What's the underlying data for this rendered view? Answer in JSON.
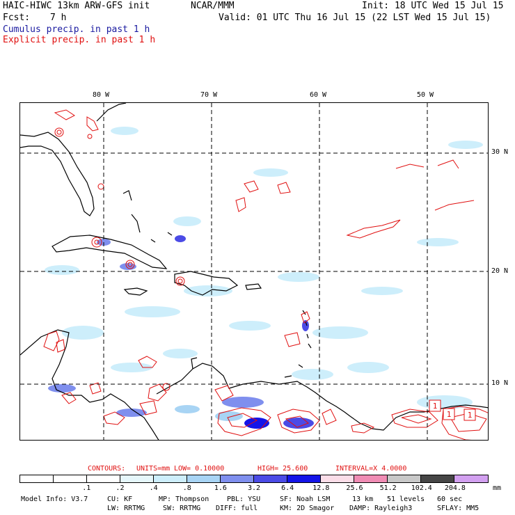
{
  "header": {
    "model_title": "HAIC-HIWC 13km ARW-GFS init",
    "center": "NCAR/MMM",
    "init": "Init: 18 UTC Wed 15 Jul 15",
    "fcst_label": "Fcst:",
    "fcst_value": "7 h",
    "valid": "Valid: 01 UTC Thu 16 Jul 15 (22 LST Wed 15 Jul 15)",
    "line1": "Cumulus precip. in past 1 h",
    "line1_color": "#1a1aa0",
    "line2": "Explicit precip. in past 1 h",
    "line2_color": "#e01010"
  },
  "map": {
    "lon_labels": [
      "80 W",
      "70 W",
      "60 W",
      "50 W"
    ],
    "lat_labels": [
      "30 N",
      "20 N",
      "10 N"
    ],
    "box_labels": [
      "1",
      "1",
      "1"
    ]
  },
  "contours": {
    "contours_label": "CONTOURS:",
    "units": "UNITS=mm",
    "low": "LOW= 0.10000",
    "high": "HIGH= 25.600",
    "interval": "INTERVAL=X 4.0000",
    "color": "#e01010"
  },
  "colorbar": {
    "units": "mm",
    "levels": [
      ".1",
      ".2",
      ".4",
      ".8",
      "1.6",
      "3.2",
      "6.4",
      "12.8",
      "25.6",
      "51.2",
      "102.4",
      "204.8"
    ],
    "colors": [
      "#ffffff",
      "#ffffff",
      "#ffffff",
      "#e6f7fb",
      "#cdeefb",
      "#a8d4f4",
      "#7f8fee",
      "#4b4be6",
      "#1414e8",
      "#fbdde8",
      "#f08cb4",
      "#c8c8c8",
      "#464646",
      "#d2a0f0"
    ]
  },
  "footer": {
    "row1": [
      "Model Info: V3.7",
      "CU: KF",
      "MP: Thompson",
      "PBL: YSU",
      "SF: Noah LSM",
      "13 km",
      "51 levels",
      "60 sec"
    ],
    "row2": [
      "LW: RRTMG",
      "SW: RRTMG",
      "DIFF: full",
      "KM: 2D Smagor",
      "DAMP: Rayleigh3",
      "SFLAY: MM5"
    ]
  }
}
